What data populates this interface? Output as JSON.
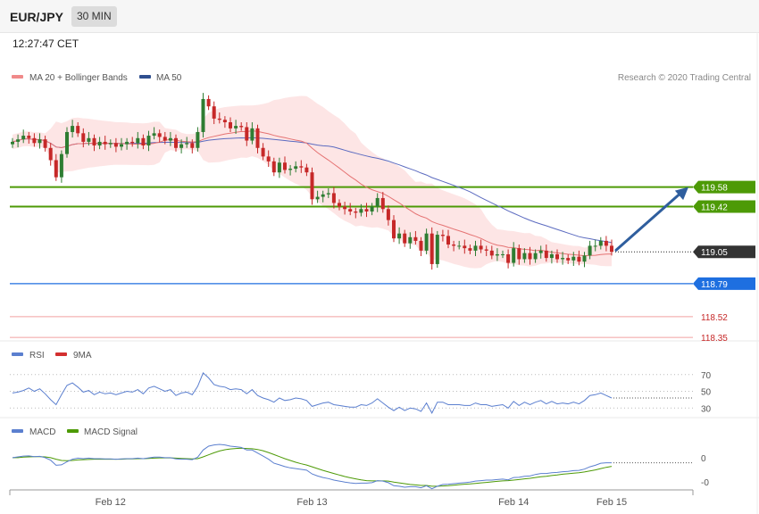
{
  "header": {
    "symbol": "EUR/JPY",
    "timeframe": "30 MIN",
    "time": "12:27:47 CET"
  },
  "legend": {
    "ma20": "MA 20 + Bollinger Bands",
    "ma50": "MA 50",
    "rsi": "RSI",
    "rsi_ma": "9MA",
    "macd": "MACD",
    "macd_signal": "MACD Signal",
    "credit": "Research © 2020 Trading Central"
  },
  "colors": {
    "up": "#2e7d32",
    "down": "#c62828",
    "ma20": "#e57373",
    "ma50": "#5c6bc0",
    "band": "#fde0e0",
    "resistance": "#4d9a06",
    "support": "#1e6fe0",
    "support_red": "#e53935",
    "price_tag": "#333333",
    "arrow": "#2f5e9e",
    "rsi": "#5b7fcf",
    "macd": "#5b7fcf",
    "macd_signal": "#4d9a06"
  },
  "chart_data": {
    "type": "candlestick",
    "x_axis": {
      "ticks": [
        {
          "label": "Feb 12",
          "index": 18
        },
        {
          "label": "Feb 13",
          "index": 55
        },
        {
          "label": "Feb 14",
          "index": 92
        },
        {
          "label": "Feb 15",
          "index": 110
        }
      ]
    },
    "y_range": [
      118.3,
      120.38
    ],
    "levels": [
      {
        "name": "resistance-2",
        "value": 119.58,
        "label": "119.58",
        "style": "resistance"
      },
      {
        "name": "resistance-1",
        "value": 119.42,
        "label": "119.42",
        "style": "resistance"
      },
      {
        "name": "last-price",
        "value": 119.05,
        "label": "119.05",
        "style": "price"
      },
      {
        "name": "support-1",
        "value": 118.79,
        "label": "118.79",
        "style": "support"
      },
      {
        "name": "support-2",
        "value": 118.52,
        "label": "118.52",
        "style": "support_red"
      },
      {
        "name": "support-3",
        "value": 118.35,
        "label": "118.35",
        "style": "support_red"
      }
    ],
    "forecast_arrow": {
      "from": 119.05,
      "to": 119.58
    },
    "close": [
      119.95,
      119.97,
      120.0,
      119.98,
      119.94,
      119.97,
      119.9,
      119.8,
      119.66,
      119.85,
      120.03,
      120.08,
      120.02,
      119.95,
      119.98,
      119.92,
      119.95,
      119.93,
      119.94,
      119.91,
      119.93,
      119.95,
      119.94,
      119.98,
      119.92,
      120.0,
      120.02,
      119.99,
      119.96,
      119.98,
      119.9,
      119.93,
      119.94,
      119.9,
      120.03,
      120.3,
      120.24,
      120.14,
      120.13,
      120.11,
      120.06,
      120.08,
      120.07,
      119.96,
      120.06,
      119.9,
      119.83,
      119.79,
      119.7,
      119.78,
      119.72,
      119.73,
      119.75,
      119.74,
      119.7,
      119.48,
      119.5,
      119.52,
      119.53,
      119.45,
      119.42,
      119.4,
      119.38,
      119.37,
      119.4,
      119.38,
      119.42,
      119.49,
      119.4,
      119.31,
      119.16,
      119.2,
      119.12,
      119.17,
      119.14,
      119.06,
      119.2,
      118.95,
      119.19,
      119.18,
      119.11,
      119.1,
      119.1,
      119.08,
      119.06,
      119.1,
      119.07,
      119.06,
      119.02,
      119.03,
      119.03,
      118.96,
      119.08,
      118.99,
      119.04,
      118.99,
      119.04,
      119.06,
      119.0,
      119.03,
      118.99,
      119.0,
      118.98,
      119.01,
      118.97,
      119.02,
      119.1,
      119.1,
      119.14,
      119.1,
      119.05
    ],
    "rsi": {
      "levels": [
        70,
        50,
        30
      ],
      "range": [
        10,
        90
      ],
      "values": [
        48,
        49,
        51,
        54,
        50,
        53,
        47,
        40,
        34,
        46,
        57,
        60,
        55,
        49,
        51,
        46,
        49,
        47,
        48,
        46,
        48,
        50,
        49,
        52,
        47,
        54,
        56,
        53,
        50,
        52,
        45,
        48,
        49,
        46,
        56,
        72,
        66,
        58,
        56,
        55,
        52,
        53,
        52,
        47,
        52,
        45,
        42,
        40,
        37,
        42,
        39,
        40,
        42,
        41,
        39,
        32,
        34,
        36,
        37,
        34,
        33,
        32,
        31,
        31,
        34,
        33,
        36,
        41,
        36,
        31,
        27,
        31,
        27,
        30,
        29,
        26,
        36,
        24,
        37,
        37,
        34,
        34,
        34,
        33,
        33,
        36,
        34,
        34,
        32,
        33,
        34,
        30,
        38,
        33,
        37,
        34,
        37,
        39,
        35,
        38,
        35,
        36,
        35,
        37,
        35,
        39,
        45,
        46,
        48,
        45,
        42
      ]
    },
    "macd": {
      "levels": [
        "0",
        "-0"
      ],
      "range": [
        -0.13,
        0.08
      ],
      "macd": [
        0.0,
        0.003,
        0.006,
        0.007,
        0.004,
        0.005,
        0.0,
        -0.01,
        -0.03,
        -0.028,
        -0.016,
        -0.006,
        -0.002,
        -0.004,
        -0.002,
        -0.004,
        -0.004,
        -0.005,
        -0.005,
        -0.006,
        -0.005,
        -0.004,
        -0.004,
        -0.002,
        -0.004,
        -0.001,
        0.002,
        0.002,
        0.0,
        0.0,
        -0.005,
        -0.006,
        -0.006,
        -0.008,
        0.002,
        0.03,
        0.045,
        0.05,
        0.052,
        0.05,
        0.045,
        0.043,
        0.04,
        0.03,
        0.03,
        0.018,
        0.006,
        -0.006,
        -0.022,
        -0.028,
        -0.035,
        -0.04,
        -0.043,
        -0.046,
        -0.049,
        -0.064,
        -0.072,
        -0.078,
        -0.082,
        -0.088,
        -0.092,
        -0.096,
        -0.099,
        -0.101,
        -0.1,
        -0.1,
        -0.098,
        -0.09,
        -0.092,
        -0.098,
        -0.11,
        -0.112,
        -0.116,
        -0.114,
        -0.114,
        -0.118,
        -0.11,
        -0.122,
        -0.112,
        -0.105,
        -0.104,
        -0.102,
        -0.1,
        -0.098,
        -0.096,
        -0.092,
        -0.09,
        -0.088,
        -0.088,
        -0.086,
        -0.084,
        -0.087,
        -0.078,
        -0.077,
        -0.073,
        -0.072,
        -0.066,
        -0.062,
        -0.062,
        -0.059,
        -0.058,
        -0.055,
        -0.054,
        -0.051,
        -0.05,
        -0.045,
        -0.036,
        -0.03,
        -0.022,
        -0.02,
        -0.02
      ],
      "signal": [
        0.0,
        0.0,
        0.002,
        0.003,
        0.004,
        0.004,
        0.003,
        0.0,
        -0.006,
        -0.011,
        -0.012,
        -0.011,
        -0.009,
        -0.008,
        -0.007,
        -0.006,
        -0.006,
        -0.006,
        -0.006,
        -0.006,
        -0.006,
        -0.005,
        -0.005,
        -0.004,
        -0.004,
        -0.003,
        -0.002,
        -0.001,
        -0.001,
        -0.001,
        -0.002,
        -0.003,
        -0.004,
        -0.005,
        -0.004,
        0.003,
        0.011,
        0.019,
        0.026,
        0.031,
        0.034,
        0.036,
        0.037,
        0.036,
        0.035,
        0.032,
        0.027,
        0.02,
        0.012,
        0.004,
        -0.004,
        -0.011,
        -0.018,
        -0.024,
        -0.029,
        -0.036,
        -0.043,
        -0.05,
        -0.056,
        -0.062,
        -0.068,
        -0.074,
        -0.079,
        -0.083,
        -0.087,
        -0.09,
        -0.091,
        -0.091,
        -0.091,
        -0.092,
        -0.096,
        -0.099,
        -0.102,
        -0.105,
        -0.107,
        -0.109,
        -0.109,
        -0.112,
        -0.112,
        -0.111,
        -0.11,
        -0.108,
        -0.106,
        -0.104,
        -0.103,
        -0.101,
        -0.099,
        -0.097,
        -0.095,
        -0.093,
        -0.091,
        -0.09,
        -0.088,
        -0.086,
        -0.083,
        -0.081,
        -0.078,
        -0.075,
        -0.073,
        -0.07,
        -0.068,
        -0.065,
        -0.063,
        -0.061,
        -0.059,
        -0.056,
        -0.052,
        -0.048,
        -0.043,
        -0.038,
        -0.034
      ]
    }
  }
}
